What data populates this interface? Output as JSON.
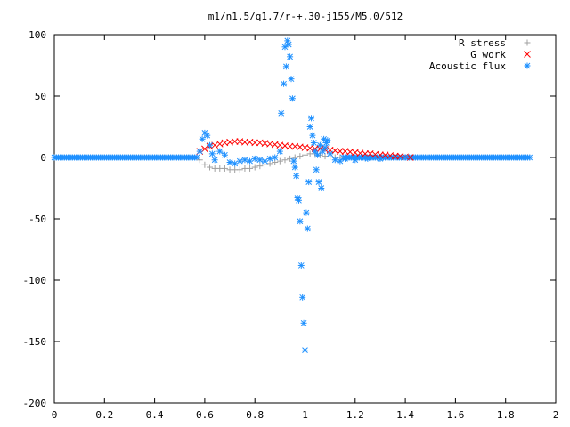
{
  "chart_data": {
    "type": "scatter",
    "title": "m1/n1.5/q1.7/r-+.30-j155/M5.0/512",
    "xlabel": "",
    "ylabel": "",
    "xlim": [
      0,
      2
    ],
    "ylim": [
      -200,
      100
    ],
    "x_ticks": [
      0,
      0.2,
      0.4,
      0.6,
      0.8,
      1,
      1.2,
      1.4,
      1.6,
      1.8,
      2
    ],
    "x_tick_labels": [
      "0",
      "0.2",
      "0.4",
      "0.6",
      "0.8",
      "1",
      "1.2",
      "1.4",
      "1.6",
      "1.8",
      "2"
    ],
    "y_ticks": [
      -200,
      -150,
      -100,
      -50,
      0,
      50,
      100
    ],
    "y_tick_labels": [
      "-200",
      "-150",
      "-100",
      "-50",
      "0",
      "50",
      "100"
    ],
    "grid": false,
    "legend_position": "top-right",
    "series": [
      {
        "name": "R stress",
        "marker": "plus",
        "color": "#a0a0a0",
        "x": [
          0.58,
          0.6,
          0.62,
          0.64,
          0.66,
          0.68,
          0.7,
          0.72,
          0.74,
          0.76,
          0.78,
          0.8,
          0.82,
          0.84,
          0.86,
          0.88,
          0.9,
          0.92,
          0.94,
          0.96,
          0.98,
          1.0,
          1.02,
          1.04,
          1.06,
          1.08,
          1.1,
          1.12,
          1.14
        ],
        "y": [
          -2,
          -6,
          -8,
          -9,
          -9,
          -9,
          -10,
          -10,
          -10,
          -9,
          -9,
          -8,
          -7,
          -6,
          -5,
          -4,
          -3,
          -2,
          -1,
          0,
          1,
          2,
          3,
          3,
          2,
          1,
          0.5,
          0,
          0
        ]
      },
      {
        "name": "G work",
        "marker": "cross",
        "color": "#ff0000",
        "x": [
          0.58,
          0.6,
          0.62,
          0.64,
          0.66,
          0.68,
          0.7,
          0.72,
          0.74,
          0.76,
          0.78,
          0.8,
          0.82,
          0.84,
          0.86,
          0.88,
          0.9,
          0.92,
          0.94,
          0.96,
          0.98,
          1.0,
          1.02,
          1.04,
          1.06,
          1.08,
          1.1,
          1.12,
          1.14,
          1.16,
          1.18,
          1.2,
          1.22,
          1.24,
          1.26,
          1.28,
          1.3,
          1.32,
          1.34,
          1.36,
          1.38,
          1.4,
          1.42
        ],
        "y": [
          5,
          7,
          9,
          10,
          11,
          12,
          12.5,
          13,
          13,
          12.5,
          12.5,
          12,
          12,
          11.5,
          11,
          10.5,
          10,
          9.5,
          9,
          9,
          8.5,
          8,
          7.5,
          7,
          7,
          6.5,
          6,
          5.5,
          5,
          5,
          4.5,
          4,
          3.5,
          3,
          3,
          2.5,
          2,
          2,
          1.5,
          1,
          1,
          0.5,
          0
        ]
      },
      {
        "name": "Acoustic flux",
        "marker": "star",
        "color": "#1e90ff",
        "x": [
          0.58,
          0.59,
          0.6,
          0.61,
          0.62,
          0.63,
          0.64,
          0.66,
          0.68,
          0.7,
          0.72,
          0.74,
          0.76,
          0.78,
          0.8,
          0.82,
          0.84,
          0.86,
          0.88,
          0.9,
          0.905,
          0.915,
          0.92,
          0.925,
          0.93,
          0.935,
          0.94,
          0.945,
          0.95,
          0.955,
          0.96,
          0.965,
          0.97,
          0.975,
          0.98,
          0.985,
          0.99,
          0.995,
          1.0,
          1.005,
          1.01,
          1.015,
          1.02,
          1.025,
          1.03,
          1.035,
          1.04,
          1.045,
          1.05,
          1.055,
          1.06,
          1.065,
          1.07,
          1.075,
          1.08,
          1.085,
          1.09,
          1.1,
          1.12,
          1.14,
          1.16,
          1.2,
          1.25,
          1.3,
          1.4
        ],
        "y": [
          5,
          15,
          20,
          18,
          10,
          3,
          -2,
          5,
          2,
          -4,
          -5,
          -3,
          -2,
          -3,
          -1,
          -2,
          -3,
          -1,
          0,
          5,
          36,
          60,
          90,
          74,
          95,
          92,
          82,
          64,
          48,
          -3,
          -8,
          -15,
          -33,
          -35,
          -52,
          -88,
          -114,
          -135,
          -157,
          -45,
          -58,
          -20,
          25,
          32,
          18,
          12,
          5,
          -10,
          2,
          -20,
          10,
          -25,
          5,
          15,
          8,
          12,
          14,
          3,
          -2,
          -3,
          -1,
          -2,
          -1,
          -1,
          0
        ]
      }
    ]
  }
}
